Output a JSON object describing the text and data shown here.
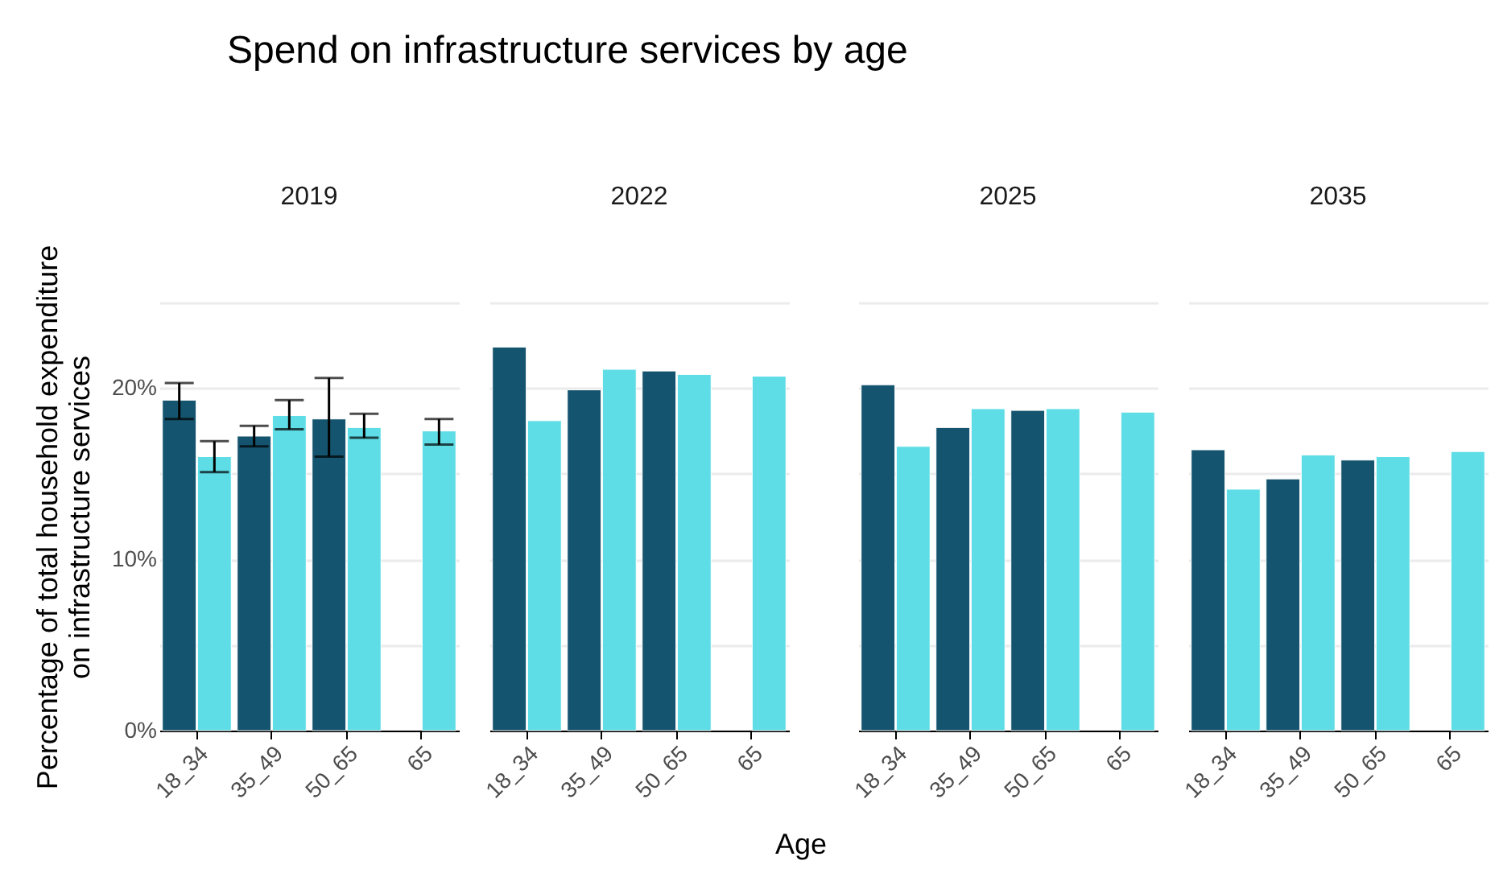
{
  "chart_data": [
    {
      "type": "bar",
      "title": "Spend on infrastructure services by age",
      "subtitle": "2019",
      "ylabel": "Percentage of total household expenditure on infrastructure services",
      "categories": [
        "18_34",
        "35_49",
        "50_65",
        "65"
      ],
      "ylim": [
        0,
        25
      ],
      "yticks": [
        {
          "value": 0,
          "label": "0%"
        },
        {
          "value": 5,
          "label": null
        },
        {
          "value": 10,
          "label": "10%"
        },
        {
          "value": 15,
          "label": null
        },
        {
          "value": 20,
          "label": "20%"
        },
        {
          "value": 25,
          "label": null
        }
      ],
      "grid": "y",
      "legend": false,
      "series": [
        {
          "color": "#15546e",
          "values": [
            19.3,
            17.2,
            18.2,
            null
          ],
          "errors": [
            [
              18.2,
              20.3
            ],
            [
              16.6,
              17.8
            ],
            [
              16.0,
              20.6
            ],
            null
          ]
        },
        {
          "color": "#5fdde6",
          "values": [
            16.0,
            18.4,
            17.7,
            17.5
          ],
          "errors": [
            [
              15.1,
              16.9
            ],
            [
              17.6,
              19.3
            ],
            [
              17.1,
              18.5
            ],
            [
              16.7,
              18.2
            ]
          ]
        }
      ]
    },
    {
      "type": "bar",
      "subtitle": "2022",
      "xlabel": "Age",
      "categories": [
        "18_34",
        "35_49",
        "50_65",
        "65"
      ],
      "ylim": [
        0,
        25
      ],
      "yticks": [
        0,
        5,
        10,
        15,
        20,
        25
      ],
      "grid": "y",
      "legend": false,
      "tick_labels": "x",
      "series": [
        {
          "color": "#15546e",
          "values": [
            22.4,
            19.9,
            21.0,
            null
          ]
        },
        {
          "color": "#5fdde6",
          "values": [
            18.1,
            21.1,
            20.8,
            20.7
          ]
        }
      ]
    },
    {
      "type": "bar",
      "subtitle": "2025",
      "categories": [
        "18_34",
        "35_49",
        "50_65",
        "65"
      ],
      "ylim": [
        0,
        25
      ],
      "yticks": [
        0,
        5,
        10,
        15,
        20,
        25
      ],
      "grid": "y",
      "legend": false,
      "tick_labels": "x",
      "series": [
        {
          "color": "#15546e",
          "values": [
            20.2,
            17.7,
            18.7,
            null
          ]
        },
        {
          "color": "#5fdde6",
          "values": [
            16.6,
            18.8,
            18.8,
            18.6
          ]
        }
      ]
    },
    {
      "type": "bar",
      "subtitle": "2035",
      "categories": [
        "18_34",
        "35_49",
        "50_65",
        "65"
      ],
      "ylim": [
        0,
        25
      ],
      "yticks": [
        0,
        5,
        10,
        15,
        20,
        25
      ],
      "grid": "y",
      "legend": false,
      "tick_labels": "x",
      "series": [
        {
          "color": "#15546e",
          "values": [
            16.4,
            14.7,
            15.8,
            null
          ]
        },
        {
          "color": "#5fdde6",
          "values": [
            14.1,
            16.1,
            16.0,
            16.3
          ]
        }
      ]
    }
  ]
}
